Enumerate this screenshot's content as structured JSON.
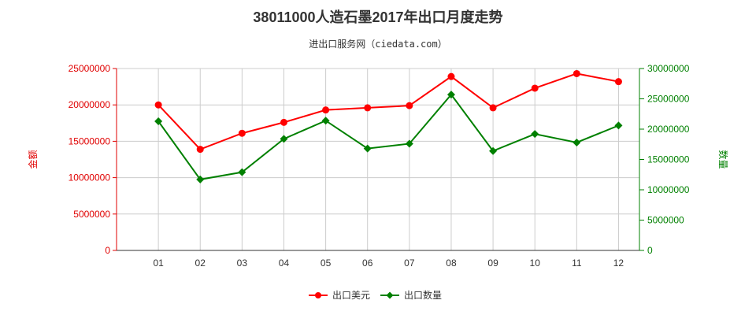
{
  "title": "38011000人造石墨2017年出口月度走势",
  "subtitle": "进出口服务网（ciedata.com）",
  "colors": {
    "left_axis": "#e00000",
    "right_axis": "#008000",
    "series_value": "#ff0000",
    "series_quantity": "#008000",
    "grid": "#cccccc"
  },
  "chart_data": {
    "type": "line",
    "title": "38011000人造石墨2017年出口月度走势",
    "categories": [
      "01",
      "02",
      "03",
      "04",
      "05",
      "06",
      "07",
      "08",
      "09",
      "10",
      "11",
      "12"
    ],
    "y_left": {
      "label": "金额",
      "range": [
        0,
        25000000
      ],
      "ticks": [
        0,
        5000000,
        10000000,
        15000000,
        20000000,
        25000000
      ]
    },
    "y_right": {
      "label": "数量",
      "range": [
        0,
        30000000
      ],
      "ticks": [
        0,
        5000000,
        10000000,
        15000000,
        20000000,
        25000000,
        30000000
      ]
    },
    "grid": true,
    "legend_position": "bottom",
    "series": [
      {
        "name": "出口美元",
        "axis": "left",
        "color": "#ff0000",
        "marker": "circle",
        "values": [
          20000000,
          13900000,
          16100000,
          17600000,
          19300000,
          19600000,
          19900000,
          23900000,
          19600000,
          22300000,
          24300000,
          23200000
        ]
      },
      {
        "name": "出口数量",
        "axis": "right",
        "color": "#008000",
        "marker": "diamond",
        "values": [
          21300000,
          11700000,
          12900000,
          18400000,
          21400000,
          16800000,
          17600000,
          25700000,
          16400000,
          19200000,
          17800000,
          20600000
        ]
      }
    ]
  }
}
